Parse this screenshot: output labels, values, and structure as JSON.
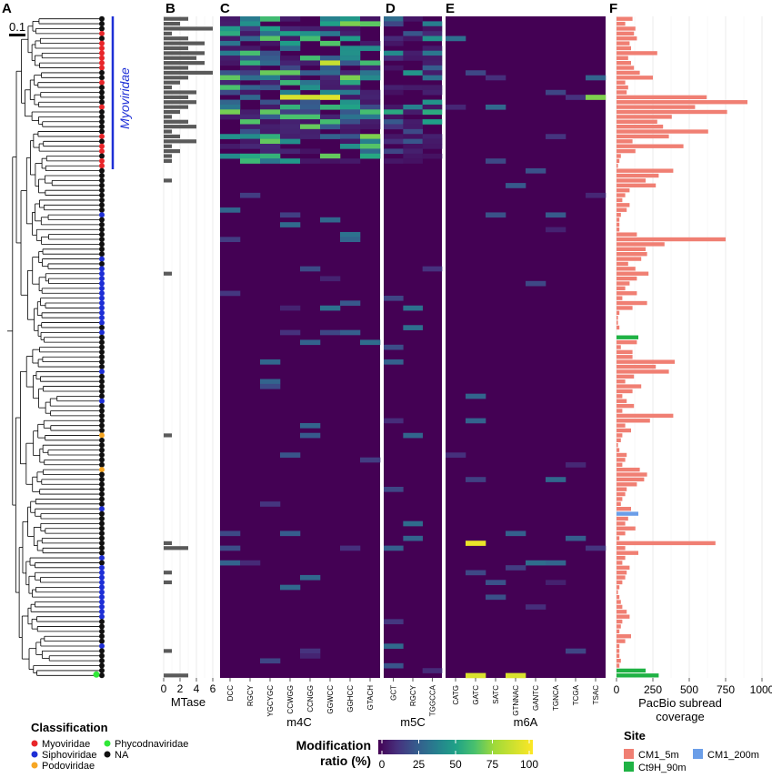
{
  "panel_letters": [
    "A",
    "B",
    "C",
    "D",
    "E",
    "F"
  ],
  "tree": {
    "scale_label": "0.1",
    "clade_label": "Myoviridae",
    "tip_count": 135
  },
  "colors": {
    "Myoviridae": "#e8262a",
    "Siphoviridae": "#1e2fd6",
    "Podoviridae": "#f6a623",
    "Phycodnaviridae": "#30e838",
    "NA": "#111111",
    "clade_bar": "#1e2fd6",
    "mtase_bar": "#5a5a5a",
    "CM1_5m": "#f07f73",
    "CM1_200m": "#6b9ee8",
    "Ct9H_90m": "#1fb244",
    "heat_low": "#440154",
    "heat_high": "#fde725"
  },
  "legend_classification": {
    "title": "Classification",
    "items": [
      "Myoviridae",
      "Siphoviridae",
      "Podoviridae",
      "Phycodnaviridae",
      "NA"
    ]
  },
  "legend_site": {
    "title": "Site",
    "items": [
      "CM1_5m",
      "CM1_200m",
      "Ct9H_90m"
    ]
  },
  "colorbar": {
    "title_line1": "Modification",
    "title_line2": "ratio (%)",
    "ticks": [
      "0",
      "25",
      "50",
      "75",
      "100"
    ]
  },
  "chart_data": [
    {
      "panel": "B",
      "type": "bar",
      "orientation": "horizontal",
      "xlabel": "MTase",
      "xlim": [
        0,
        6.5
      ],
      "xticks": [
        "0",
        "2",
        "4",
        "6"
      ],
      "values_top_rows": [
        3,
        2,
        6,
        1,
        3,
        5,
        3,
        5,
        4,
        5,
        3,
        6,
        3,
        2,
        1,
        4,
        3,
        4,
        3,
        2,
        1,
        3,
        4,
        1,
        2,
        4,
        1,
        2,
        1,
        1
      ],
      "values_other_rows": {
        "33": 1,
        "52": 1,
        "85": 1,
        "107": 1,
        "108": 3,
        "113": 1,
        "115": 1,
        "129": 1,
        "134": 3
      }
    },
    {
      "panel": "C-E",
      "type": "heatmap",
      "zlabel": "Modification ratio (%)",
      "zlim": [
        0,
        100
      ],
      "groups": [
        {
          "name": "m4C",
          "motifs": [
            "DCC",
            "RGCY",
            "YGCYGC",
            "CCWGG",
            "CCNGG",
            "GGWCC",
            "GGHCC",
            "GTACH"
          ]
        },
        {
          "name": "m5C",
          "motifs": [
            "GCT",
            "RGCY",
            "TGGCCA"
          ]
        },
        {
          "name": "m6A",
          "motifs": [
            "CATG",
            "GATC",
            "SATC",
            "GTNNAC",
            "GANTC",
            "TGNCA",
            "TCGA",
            "TSAC"
          ]
        }
      ],
      "highlights": [
        {
          "row": 16,
          "motif": "CCWGG",
          "value": 90
        },
        {
          "row": 16,
          "motif": "GGWCC",
          "value": 92
        },
        {
          "row": 16,
          "motif": "CCNGG",
          "value": 88
        },
        {
          "row": 9,
          "motif": "GGWCC",
          "value": 85
        },
        {
          "row": 16,
          "motif": "TSAC",
          "value": 70
        },
        {
          "row": 107,
          "motif": "GATC",
          "value": 95
        },
        {
          "row": 134,
          "motif": "GATC",
          "value": 90
        },
        {
          "row": 134,
          "motif": "GTNNAC",
          "value": 90
        }
      ]
    },
    {
      "panel": "F",
      "type": "bar",
      "orientation": "horizontal",
      "xlabel": "PacBio subread coverage",
      "xlim": [
        0,
        1050
      ],
      "xticks": [
        "0",
        "250",
        "500",
        "750",
        "1000"
      ],
      "series": [
        {
          "name": "CM1_5m",
          "values": [
            110,
            60,
            130,
            120,
            140,
            90,
            100,
            280,
            80,
            100,
            120,
            160,
            250,
            60,
            80,
            70,
            620,
            900,
            540,
            760,
            380,
            280,
            320,
            630,
            360,
            110,
            460,
            130,
            30,
            20,
            10,
            390,
            290,
            200,
            270,
            90,
            60,
            40,
            90,
            70,
            30,
            20,
            20,
            20,
            140,
            750,
            330,
            200,
            210,
            170,
            80,
            130,
            220,
            140,
            90,
            60,
            140,
            40,
            210,
            110,
            20,
            10,
            10,
            20,
            0,
            60,
            140,
            30,
            110,
            110,
            400,
            270,
            360,
            120,
            60,
            170,
            110,
            40,
            70,
            120,
            40,
            390,
            230,
            60,
            100,
            40,
            30,
            10,
            20,
            70,
            60,
            40,
            160,
            210,
            190,
            140,
            70,
            60,
            40,
            30,
            100,
            0,
            80,
            60,
            130,
            60,
            20,
            680,
            60,
            150,
            60,
            40,
            90,
            70,
            60,
            40,
            20,
            10,
            20,
            30,
            40,
            70,
            90,
            40,
            30,
            20,
            100,
            60,
            20,
            20,
            20,
            30,
            20,
            0,
            0
          ]
        },
        {
          "name": "CM1_200m",
          "values": {
            "101": 150
          }
        },
        {
          "name": "Ct9H_90m",
          "values": {
            "65": 150,
            "133": 200,
            "134": 290
          }
        }
      ]
    }
  ]
}
